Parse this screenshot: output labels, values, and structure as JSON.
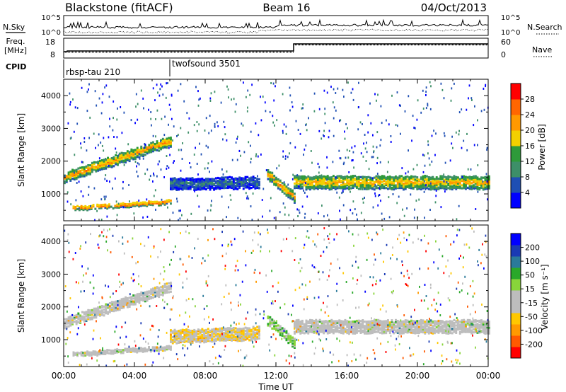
{
  "header": {
    "station": "Blackstone (fitACF)",
    "beam": "Beam 16",
    "date": "04/Oct/2013"
  },
  "summary_panels": {
    "nsky_label": "N.Sky",
    "nsearch_label": "N.Search",
    "count_ticks": [
      "10^5",
      "10^0"
    ],
    "freq_label_line1": "Freq.",
    "freq_label_line2": "[MHz]",
    "freq_ticks": [
      "18",
      "8"
    ],
    "nave_label": "Nave",
    "nave_ticks": [
      "60",
      "0"
    ],
    "cpid_label": "CPID",
    "cpid_segments": [
      {
        "name": "rbsp-tau 210",
        "start_hour": 0.0,
        "end_hour": 6.0
      },
      {
        "name": "twofsound 3501",
        "start_hour": 6.0,
        "end_hour": 24.0
      }
    ]
  },
  "colors": {
    "power_scale": [
      "#0000ff",
      "#1f4fb4",
      "#3d8f68",
      "#2e9a3a",
      "#f2d000",
      "#ff9900",
      "#ff6600",
      "#ff0000"
    ],
    "velocity_scale": [
      "#ff0000",
      "#ff5a00",
      "#ff9a00",
      "#ffc800",
      "#bdbdbd",
      "#bdbdbd",
      "#88d43a",
      "#2aa82a",
      "#2a7a9a",
      "#1a3ab4",
      "#0000ff"
    ],
    "ground_scatter": "#bdbdbd"
  },
  "chart_data": [
    {
      "type": "heatmap",
      "name": "power",
      "xlabel": "",
      "ylabel": "Slant Range [km]",
      "xlim": [
        0,
        24
      ],
      "ylim": [
        180,
        4500
      ],
      "y_ticks": [
        "1000",
        "2000",
        "3000",
        "4000"
      ],
      "colorbar_label": "Power [dB]",
      "colorbar_ticks": [
        "4",
        "8",
        "12",
        "16",
        "20",
        "24",
        "28"
      ],
      "colorbar_range": [
        0,
        30
      ],
      "bands": [
        {
          "start_hour": 0.0,
          "end_hour": 6.0,
          "range_start_km": 1500,
          "range_end_km": 2600,
          "width_km": 300,
          "peak_db": 24
        },
        {
          "start_hour": 0.5,
          "end_hour": 6.0,
          "range_start_km": 550,
          "range_end_km": 750,
          "width_km": 120,
          "peak_db": 28
        },
        {
          "start_hour": 6.0,
          "end_hour": 11.0,
          "range_start_km": 1300,
          "range_end_km": 1350,
          "width_km": 350,
          "peak_db": 8
        },
        {
          "start_hour": 11.5,
          "end_hour": 13.0,
          "range_start_km": 1600,
          "range_end_km": 900,
          "width_km": 300,
          "peak_db": 24
        },
        {
          "start_hour": 13.0,
          "end_hour": 24.0,
          "range_start_km": 1350,
          "range_end_km": 1350,
          "width_km": 400,
          "peak_db": 22
        }
      ]
    },
    {
      "type": "heatmap",
      "name": "velocity",
      "xlabel": "Time UT",
      "ylabel": "Slant Range [km]",
      "xlim": [
        0,
        24
      ],
      "ylim": [
        180,
        4500
      ],
      "x_ticks": [
        "00:00",
        "04:00",
        "08:00",
        "12:00",
        "16:00",
        "20:00",
        "00:00"
      ],
      "y_ticks": [
        "1000",
        "2000",
        "3000",
        "4000"
      ],
      "colorbar_label": "Velocity [m s⁻¹]",
      "colorbar_ticks": [
        "200",
        "100",
        "50",
        "15",
        "-15",
        "-50",
        "-100",
        "-200"
      ],
      "bands": [
        {
          "start_hour": 0.0,
          "end_hour": 6.0,
          "range_start_km": 1500,
          "range_end_km": 2600,
          "width_km": 300,
          "velocity": 0,
          "ground_scatter": true
        },
        {
          "start_hour": 0.5,
          "end_hour": 6.0,
          "range_start_km": 550,
          "range_end_km": 750,
          "width_km": 120,
          "velocity": 0,
          "ground_scatter": true
        },
        {
          "start_hour": 6.0,
          "end_hour": 11.0,
          "range_start_km": 1100,
          "range_end_km": 1200,
          "width_km": 400,
          "velocity": -60
        },
        {
          "start_hour": 11.5,
          "end_hour": 13.0,
          "range_start_km": 1600,
          "range_end_km": 900,
          "width_km": 300,
          "velocity": 30
        },
        {
          "start_hour": 13.0,
          "end_hour": 24.0,
          "range_start_km": 1400,
          "range_end_km": 1400,
          "width_km": 400,
          "velocity": 0,
          "ground_scatter": true
        }
      ]
    }
  ]
}
